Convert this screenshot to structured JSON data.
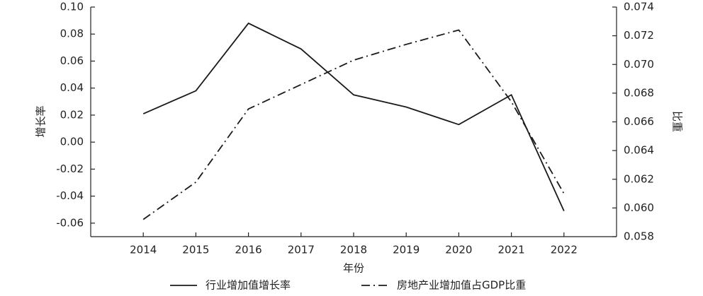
{
  "chart_data": {
    "type": "line",
    "x": [
      2014,
      2015,
      2016,
      2017,
      2018,
      2019,
      2020,
      2021,
      2022
    ],
    "xlim": [
      2013,
      2023
    ],
    "xticks": [
      2014,
      2015,
      2016,
      2017,
      2018,
      2019,
      2020,
      2021,
      2022
    ],
    "x_label": "年份",
    "y_label": "增长率",
    "y2_label": "比重",
    "ylim": [
      -0.07,
      0.1
    ],
    "yticks": [
      {
        "value": 0.1,
        "label": "0.10"
      },
      0.08,
      0.06,
      0.04,
      0.02,
      {
        "value": 0,
        "label": "0.00"
      },
      -0.02,
      -0.04,
      -0.06
    ],
    "y2lim": [
      0.058,
      0.074
    ],
    "y2ticks": [
      0.074,
      0.072,
      {
        "value": 0.07,
        "label": "0.070"
      },
      0.068,
      0.066,
      0.064,
      0.062,
      {
        "value": 0.06,
        "label": "0.060"
      },
      0.058
    ],
    "series": [
      {
        "name": "行业增加值增长率",
        "color": "#1a1a1a",
        "style": "solid",
        "axis": "y",
        "values": [
          0.021,
          0.038,
          0.088,
          0.069,
          0.035,
          0.026,
          0.013,
          0.035,
          -0.051
        ]
      },
      {
        "name": "房地产业增加值占GDP比重",
        "color": "#1a1a1a",
        "style": "dashdot",
        "axis": "y2",
        "values": [
          0.0592,
          0.0618,
          0.0669,
          0.0686,
          0.0703,
          0.0714,
          0.0724,
          0.0674,
          0.061
        ]
      }
    ]
  }
}
